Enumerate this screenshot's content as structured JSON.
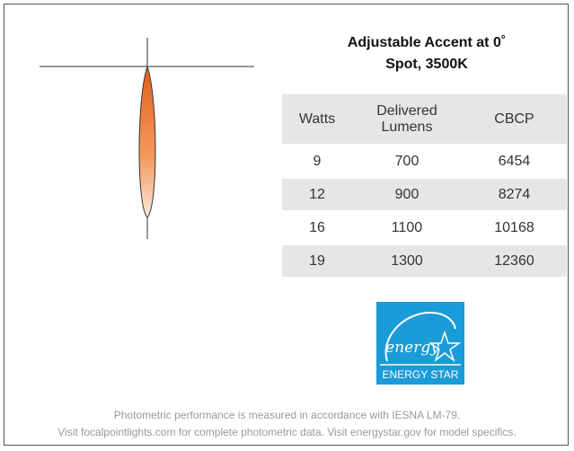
{
  "header": {
    "title_line1": "Adjustable Accent at 0˚",
    "title_line2": "Spot, 3500K"
  },
  "table": {
    "columns": [
      "Watts",
      "Delivered Lumens",
      "CBCP"
    ],
    "rows": [
      [
        "9",
        "700",
        "6454"
      ],
      [
        "12",
        "900",
        "8274"
      ],
      [
        "16",
        "1100",
        "10168"
      ],
      [
        "19",
        "1300",
        "12360"
      ]
    ]
  },
  "logo": {
    "script": "energy",
    "label": "ENERGY STAR"
  },
  "footer": {
    "line1": "Photometric performance is measured in accordance with IESNA LM-79.",
    "line2": "Visit focalpointlights.com for complete photometric data. Visit energystar.gov for model specifics."
  }
}
